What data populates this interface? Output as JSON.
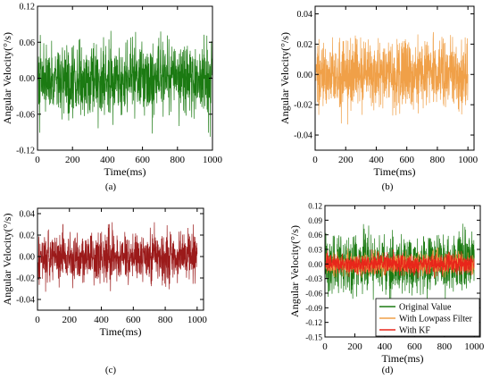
{
  "colors": {
    "green": "#1b7a12",
    "orange": "#f0a048",
    "red": "#9b1a1a",
    "bright_red": "#e8261a"
  },
  "chart_data": [
    {
      "type": "line",
      "panel_label": "(a)",
      "xlabel": "Time(ms)",
      "ylabel": "Angular Velocity(°/s)",
      "xlim": [
        0,
        1000
      ],
      "ylim": [
        -0.12,
        0.12
      ],
      "xticks": [
        0,
        200,
        400,
        600,
        800,
        1000
      ],
      "yticks": [
        -0.12,
        -0.06,
        0.0,
        0.06,
        0.12
      ],
      "ytick_labels": [
        "-0.12",
        "-0.06",
        "0.00",
        "0.06",
        "0.12"
      ],
      "series": [
        {
          "color": "green",
          "n_points": 1000,
          "mean": 0.0,
          "std": 0.03,
          "min": -0.11,
          "max": 0.1
        }
      ]
    },
    {
      "type": "line",
      "panel_label": "(b)",
      "xlabel": "Time(ms)",
      "ylabel": "Angular Velocity(°/s)",
      "xlim": [
        0,
        1040
      ],
      "ylim": [
        -0.05,
        0.045
      ],
      "xticks": [
        0,
        200,
        400,
        600,
        800,
        1000
      ],
      "yticks": [
        -0.04,
        -0.02,
        0.0,
        0.02,
        0.04
      ],
      "ytick_labels": [
        "-0.04",
        "-0.02",
        "0.00",
        "0.02",
        "0.04"
      ],
      "series": [
        {
          "color": "orange",
          "n_points": 1000,
          "mean": 0.0,
          "std": 0.011,
          "min": -0.041,
          "max": 0.037
        }
      ]
    },
    {
      "type": "line",
      "panel_label": "(c)",
      "xlabel": "Time(ms)",
      "ylabel": "Angular Velocity(°/s)",
      "xlim": [
        0,
        1040
      ],
      "ylim": [
        -0.05,
        0.045
      ],
      "xticks": [
        0,
        200,
        400,
        600,
        800,
        1000
      ],
      "yticks": [
        -0.04,
        -0.02,
        0.0,
        0.02,
        0.04
      ],
      "ytick_labels": [
        "-0.04",
        "-0.02",
        "0.00",
        "0.02",
        "0.04"
      ],
      "series": [
        {
          "color": "red",
          "n_points": 1000,
          "mean": 0.0,
          "std": 0.011,
          "min": -0.039,
          "max": 0.032
        }
      ]
    },
    {
      "type": "line",
      "panel_label": "(d)",
      "xlabel": "Time(ms)",
      "ylabel": "Angular Velocity(°/s)",
      "xlim": [
        0,
        1040
      ],
      "ylim": [
        -0.15,
        0.12
      ],
      "xticks": [
        0,
        200,
        400,
        600,
        800,
        1000
      ],
      "yticks": [
        -0.15,
        -0.12,
        -0.09,
        -0.06,
        -0.03,
        0.0,
        0.03,
        0.06,
        0.09,
        0.12
      ],
      "ytick_labels": [
        "-0.15",
        "-0.12",
        "-0.09",
        "-0.06",
        "-0.03",
        "0.00",
        "0.03",
        "0.06",
        "0.09",
        "0.12"
      ],
      "legend_position": "bottom-right",
      "series": [
        {
          "name": "Original Value",
          "color": "green",
          "n_points": 1000,
          "mean": 0.0,
          "std": 0.03,
          "min": -0.11,
          "max": 0.1
        },
        {
          "name": "With Lowpass Filter",
          "color": "orange",
          "n_points": 1000,
          "mean": 0.0,
          "std": 0.011,
          "min": -0.041,
          "max": 0.037
        },
        {
          "name": "With KF",
          "color": "bright_red",
          "n_points": 1000,
          "mean": 0.0,
          "std": 0.01,
          "min": -0.035,
          "max": 0.03
        }
      ]
    }
  ]
}
